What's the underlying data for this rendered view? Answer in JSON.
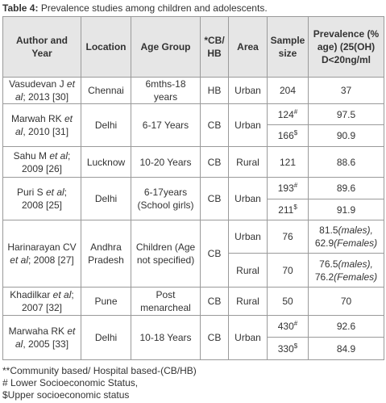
{
  "title": {
    "label": "Table 4:",
    "text": "Prevalence studies among children and adolescents."
  },
  "table": {
    "header": [
      "Author and Year",
      "Location",
      "Age Group",
      "*CB/ HB",
      "Area",
      "Sample size",
      "Prevalence (% age) (25(OH) D<20ng/ml"
    ],
    "rows": [
      {
        "author": [
          "Vasudevan J ",
          "et al",
          "; 2013 [30]"
        ],
        "location": "Chennai",
        "age": "6mths-18 years",
        "type": "HB",
        "area": "Urban",
        "samples": [
          {
            "n": 204,
            "prevalence": 37
          }
        ]
      },
      {
        "author": [
          "Marwah RK ",
          "et al",
          ", 2010 [31]"
        ],
        "location": "Delhi",
        "age": "6-17 Years",
        "type": "CB",
        "area": "Urban",
        "samples": [
          {
            "n": 124,
            "mark": "#",
            "prevalence": 97.5
          },
          {
            "n": 166,
            "mark": "$",
            "prevalence": 90.9
          }
        ]
      },
      {
        "author": [
          "Sahu M ",
          "et al",
          "; 2009 [26]"
        ],
        "location": "Lucknow",
        "age": "10-20 Years",
        "type": "CB",
        "area": "Rural",
        "samples": [
          {
            "n": 121,
            "prevalence": 88.6
          }
        ]
      },
      {
        "author": [
          "Puri S ",
          "et al",
          "; 2008 [25]"
        ],
        "location": "Delhi",
        "age": "6-17years (School girls)",
        "type": "CB",
        "area": "Urban",
        "samples": [
          {
            "n": 193,
            "mark": "#",
            "prevalence": 89.6
          },
          {
            "n": 211,
            "mark": "$",
            "prevalence": 91.9
          }
        ]
      },
      {
        "author": [
          "Harinarayan CV ",
          "et al",
          "; 2008 [27]"
        ],
        "location": "Andhra Pradesh",
        "age": "Children (Age not specified)",
        "type": "CB",
        "samples": [
          {
            "area": "Urban",
            "n": 76,
            "prevalence": [
              "81.5",
              "(males),",
              "62.9",
              "(Females)"
            ]
          },
          {
            "area": "Rural",
            "n": 70,
            "prevalence": [
              "76.5",
              "(males),",
              "76.2",
              "(Females)"
            ]
          }
        ]
      },
      {
        "author": [
          "Khadilkar ",
          "et al",
          "; 2007 [32]"
        ],
        "location": "Pune",
        "age": "Post menarcheal",
        "type": "CB",
        "area": "Rural",
        "samples": [
          {
            "n": 50,
            "prevalence": 70
          }
        ]
      },
      {
        "author": [
          "Marwaha RK ",
          "et al",
          ", 2005 [33]"
        ],
        "location": "Delhi",
        "age": "10-18 Years",
        "type": "CB",
        "area": "Urban",
        "samples": [
          {
            "n": 430,
            "mark": "#",
            "prevalence": 92.6
          },
          {
            "n": 330,
            "mark": "$",
            "prevalence": 84.9
          }
        ]
      }
    ]
  },
  "footnotes": [
    "**Community based/ Hospital based-(CB/HB)",
    "# Lower Socioeconomic Status,",
    "$Upper socioeconomic status"
  ]
}
